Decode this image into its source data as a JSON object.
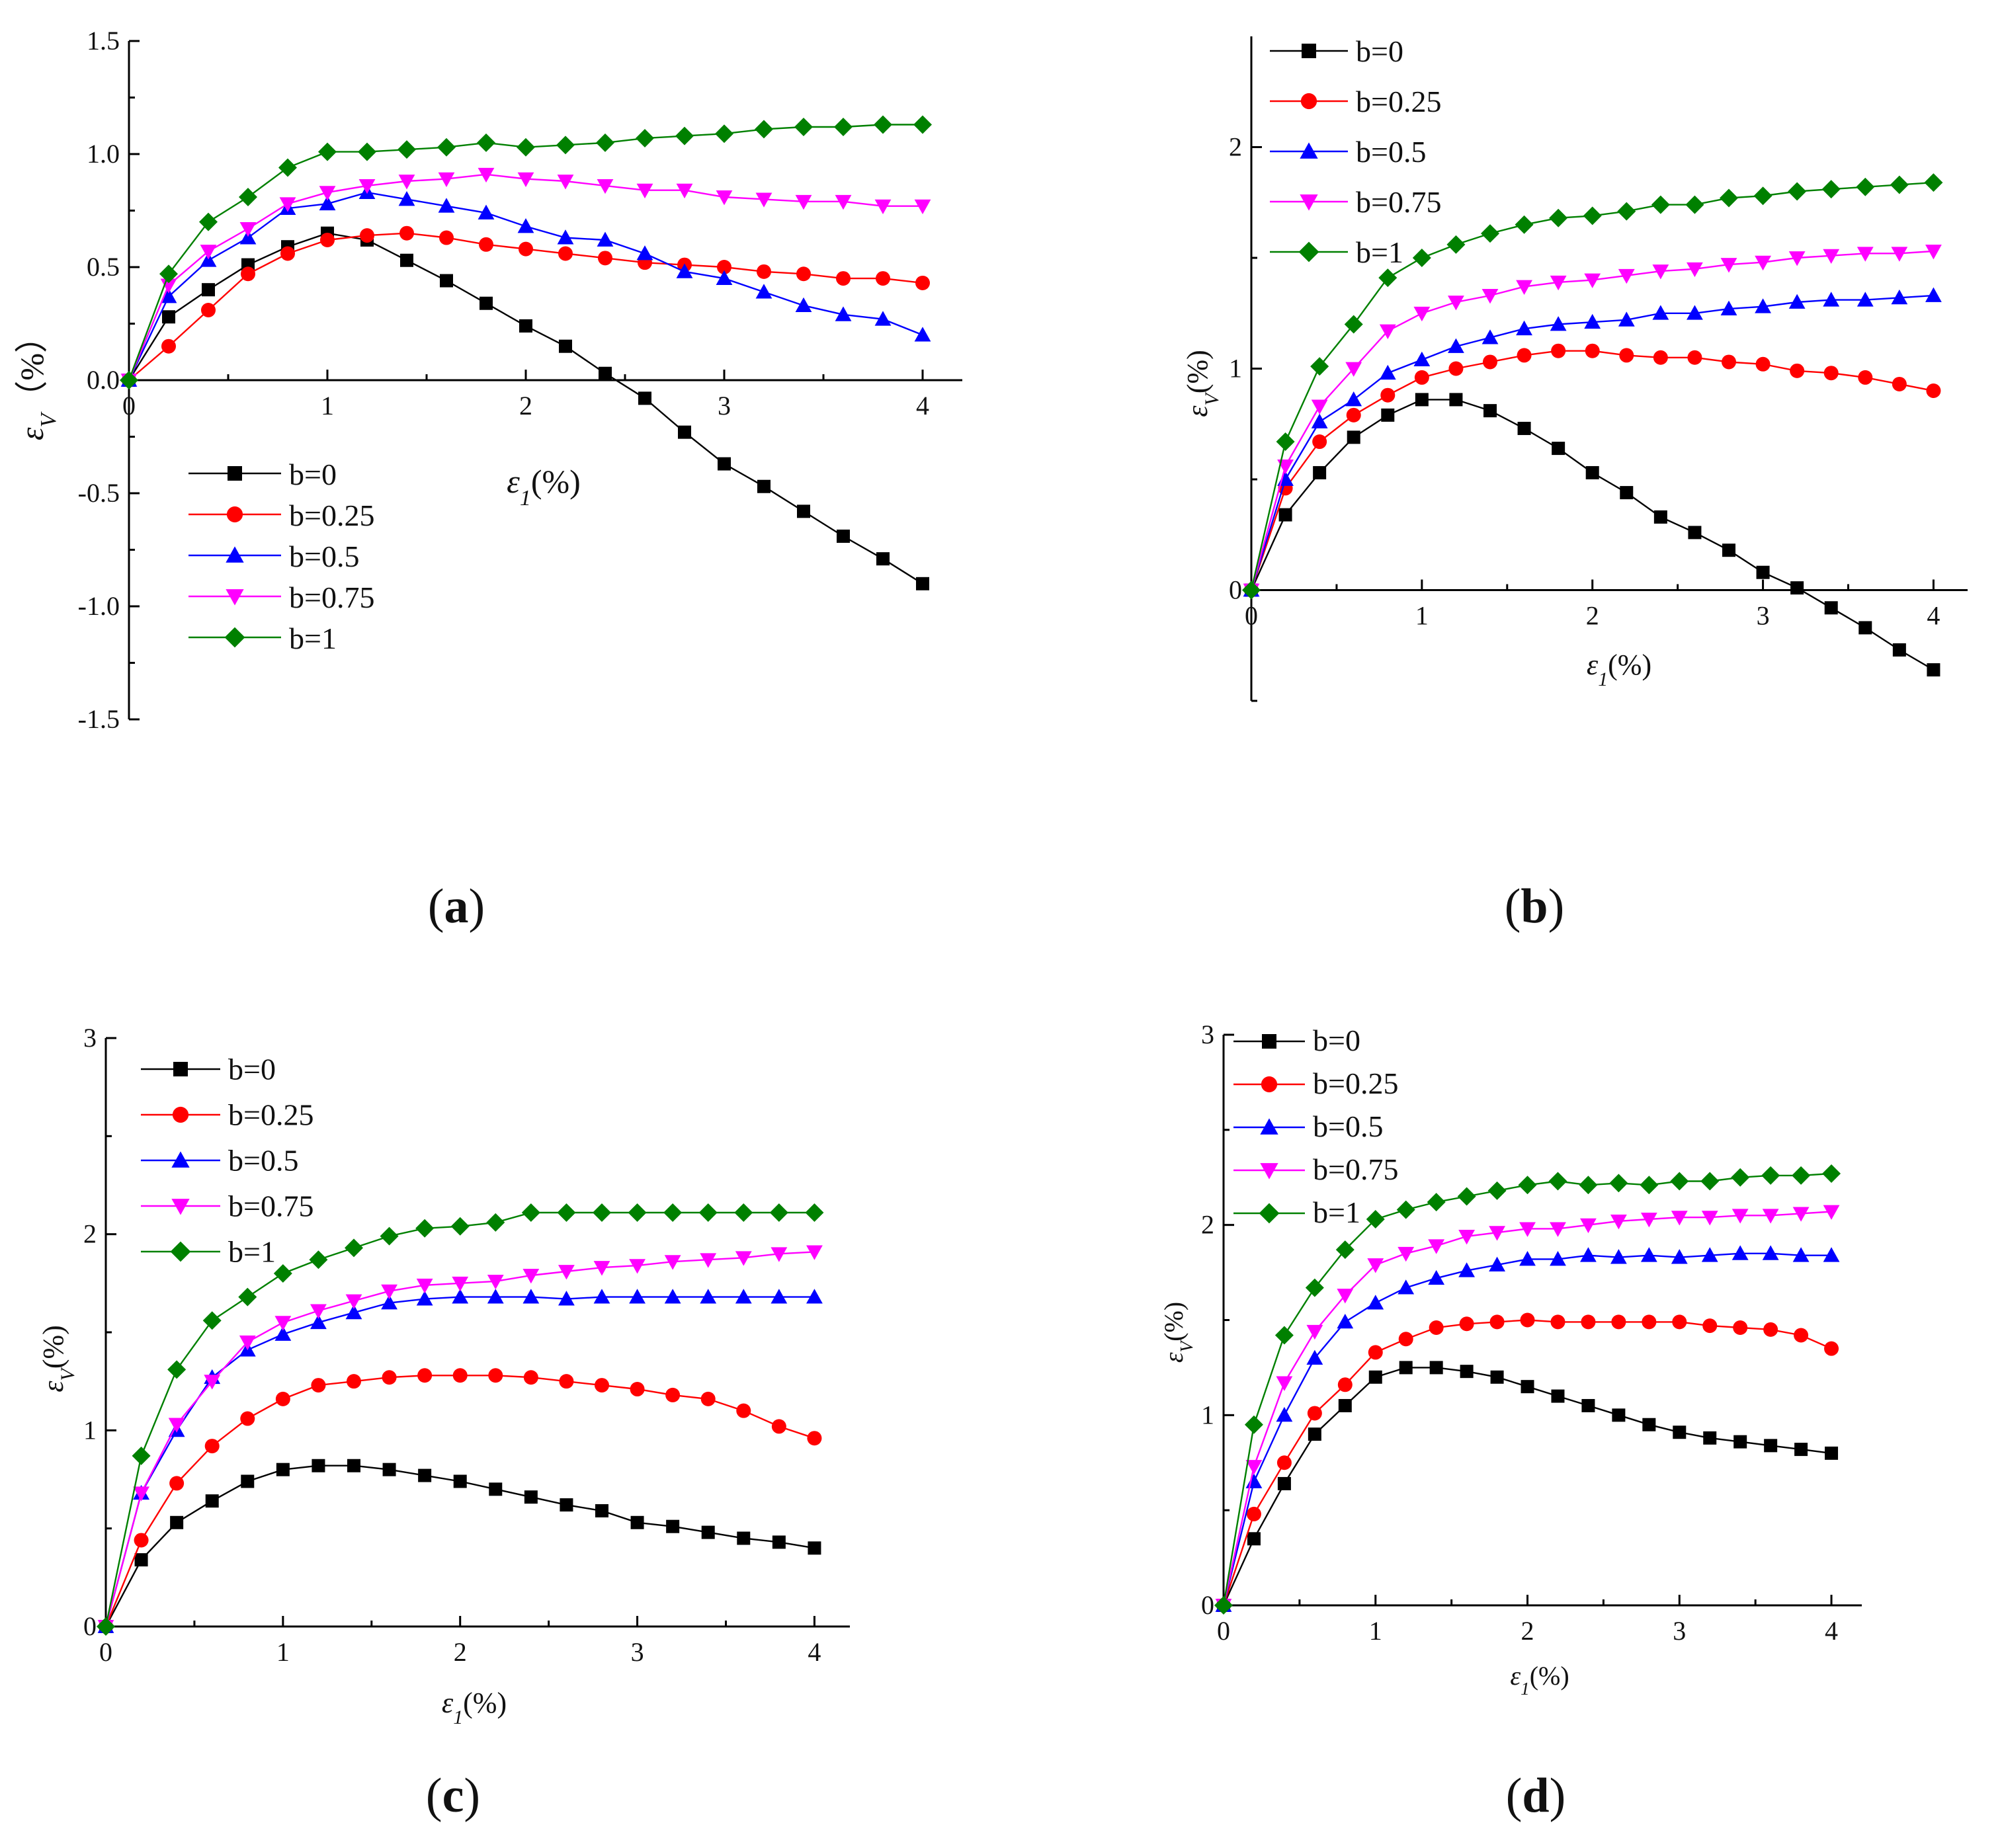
{
  "figure": {
    "panels": [
      "a",
      "b",
      "c",
      "d"
    ]
  },
  "styles": {
    "series": [
      {
        "name": "b=0",
        "color": "#000000",
        "marker": "square"
      },
      {
        "name": "b=0.25",
        "color": "#ff0000",
        "marker": "circle"
      },
      {
        "name": "b=0.5",
        "color": "#0000ff",
        "marker": "triangle-up"
      },
      {
        "name": "b=0.75",
        "color": "#ff00ff",
        "marker": "triangle-down"
      },
      {
        "name": "b=1",
        "color": "#008000",
        "marker": "diamond"
      }
    ]
  },
  "chart_data": [
    {
      "id": "a",
      "type": "line",
      "panel_label_letter": "a",
      "xlabel": "ε1(%)",
      "ylabel": "εV（%）",
      "xlim": [
        0,
        4.2
      ],
      "ylim": [
        -1.5,
        1.5
      ],
      "xticks": [
        "0",
        "1",
        "2",
        "3",
        "4"
      ],
      "yticks": [
        "1.5",
        "1.0",
        "0.5",
        "0.0",
        "-0.5",
        "-1.0",
        "-1.5"
      ],
      "legend": [
        "b=0",
        "b=0.25",
        "b=0.5",
        "b=0.75",
        "b=1"
      ],
      "legend_position": "bottom-left",
      "x": [
        0,
        0.2,
        0.4,
        0.6,
        0.8,
        1.0,
        1.2,
        1.4,
        1.6,
        1.8,
        2.0,
        2.2,
        2.4,
        2.6,
        2.8,
        3.0,
        3.2,
        3.4,
        3.6,
        3.8,
        4.0
      ],
      "series": [
        {
          "name": "b=0",
          "values": [
            0,
            0.28,
            0.4,
            0.51,
            0.59,
            0.65,
            0.62,
            0.53,
            0.44,
            0.34,
            0.24,
            0.15,
            0.03,
            -0.08,
            -0.23,
            -0.37,
            -0.47,
            -0.58,
            -0.69,
            -0.79,
            -0.9
          ]
        },
        {
          "name": "b=0.25",
          "values": [
            0,
            0.15,
            0.31,
            0.47,
            0.56,
            0.62,
            0.64,
            0.65,
            0.63,
            0.6,
            0.58,
            0.56,
            0.54,
            0.52,
            0.51,
            0.5,
            0.48,
            0.47,
            0.45,
            0.45,
            0.43
          ]
        },
        {
          "name": "b=0.5",
          "values": [
            0,
            0.37,
            0.53,
            0.63,
            0.76,
            0.78,
            0.83,
            0.8,
            0.77,
            0.74,
            0.68,
            0.63,
            0.62,
            0.56,
            0.48,
            0.45,
            0.39,
            0.33,
            0.29,
            0.27,
            0.2
          ]
        },
        {
          "name": "b=0.75",
          "values": [
            0,
            0.42,
            0.57,
            0.67,
            0.78,
            0.83,
            0.86,
            0.88,
            0.89,
            0.91,
            0.89,
            0.88,
            0.86,
            0.84,
            0.84,
            0.81,
            0.8,
            0.79,
            0.79,
            0.77,
            0.77
          ]
        },
        {
          "name": "b=1",
          "values": [
            0,
            0.47,
            0.7,
            0.81,
            0.94,
            1.01,
            1.01,
            1.02,
            1.03,
            1.05,
            1.03,
            1.04,
            1.05,
            1.07,
            1.08,
            1.09,
            1.11,
            1.12,
            1.12,
            1.13,
            1.13
          ]
        }
      ]
    },
    {
      "id": "b",
      "type": "line",
      "panel_label_letter": "b",
      "xlabel": "ε1(%)",
      "ylabel": "εV(%)",
      "xlim": [
        0,
        4.2
      ],
      "ylim": [
        -0.5,
        2.5
      ],
      "xticks": [
        "0",
        "1",
        "2",
        "3",
        "4"
      ],
      "yticks": [
        "2",
        "1",
        "0"
      ],
      "legend": [
        "b=0",
        "b=0.25",
        "b=0.5",
        "b=0.75",
        "b=1"
      ],
      "legend_position": "top-left",
      "x": [
        0,
        0.2,
        0.4,
        0.6,
        0.8,
        1.0,
        1.2,
        1.4,
        1.6,
        1.8,
        2.0,
        2.2,
        2.4,
        2.6,
        2.8,
        3.0,
        3.2,
        3.4,
        3.6,
        3.8,
        4.0
      ],
      "series": [
        {
          "name": "b=0",
          "values": [
            0,
            0.34,
            0.53,
            0.69,
            0.79,
            0.86,
            0.86,
            0.81,
            0.73,
            0.64,
            0.53,
            0.44,
            0.33,
            0.26,
            0.18,
            0.08,
            0.01,
            -0.08,
            -0.17,
            -0.27,
            -0.36
          ]
        },
        {
          "name": "b=0.25",
          "values": [
            0,
            0.46,
            0.67,
            0.79,
            0.88,
            0.96,
            1.0,
            1.03,
            1.06,
            1.08,
            1.08,
            1.06,
            1.05,
            1.05,
            1.03,
            1.02,
            0.99,
            0.98,
            0.96,
            0.93,
            0.9
          ]
        },
        {
          "name": "b=0.5",
          "values": [
            0,
            0.5,
            0.76,
            0.86,
            0.98,
            1.04,
            1.1,
            1.14,
            1.18,
            1.2,
            1.21,
            1.22,
            1.25,
            1.25,
            1.27,
            1.28,
            1.3,
            1.31,
            1.31,
            1.32,
            1.33
          ]
        },
        {
          "name": "b=0.75",
          "values": [
            0,
            0.56,
            0.83,
            1.0,
            1.17,
            1.25,
            1.3,
            1.33,
            1.37,
            1.39,
            1.4,
            1.42,
            1.44,
            1.45,
            1.47,
            1.48,
            1.5,
            1.51,
            1.52,
            1.52,
            1.53
          ]
        },
        {
          "name": "b=1",
          "values": [
            0,
            0.67,
            1.01,
            1.2,
            1.41,
            1.5,
            1.56,
            1.61,
            1.65,
            1.68,
            1.69,
            1.71,
            1.74,
            1.74,
            1.77,
            1.78,
            1.8,
            1.81,
            1.82,
            1.83,
            1.84
          ]
        }
      ]
    },
    {
      "id": "c",
      "type": "line",
      "panel_label_letter": "c",
      "xlabel": "ε1(%)",
      "ylabel": "εV(%)",
      "xlim": [
        0,
        4.2
      ],
      "ylim": [
        0,
        3
      ],
      "xticks": [
        "0",
        "1",
        "2",
        "3",
        "4"
      ],
      "yticks": [
        "3",
        "2",
        "1",
        "0"
      ],
      "legend": [
        "b=0",
        "b=0.25",
        "b=0.5",
        "b=0.75",
        "b=1"
      ],
      "legend_position": "top-left",
      "x": [
        0,
        0.2,
        0.4,
        0.6,
        0.8,
        1.0,
        1.2,
        1.4,
        1.6,
        1.8,
        2.0,
        2.2,
        2.4,
        2.6,
        2.8,
        3.0,
        3.2,
        3.4,
        3.6,
        3.8,
        4.0
      ],
      "series": [
        {
          "name": "b=0",
          "values": [
            0,
            0.34,
            0.53,
            0.64,
            0.74,
            0.8,
            0.82,
            0.82,
            0.8,
            0.77,
            0.74,
            0.7,
            0.66,
            0.62,
            0.59,
            0.53,
            0.51,
            0.48,
            0.45,
            0.43,
            0.4
          ]
        },
        {
          "name": "b=0.25",
          "values": [
            0,
            0.44,
            0.73,
            0.92,
            1.06,
            1.16,
            1.23,
            1.25,
            1.27,
            1.28,
            1.28,
            1.28,
            1.27,
            1.25,
            1.23,
            1.21,
            1.18,
            1.16,
            1.1,
            1.02,
            0.96
          ]
        },
        {
          "name": "b=0.5",
          "values": [
            0,
            0.68,
            1.0,
            1.27,
            1.41,
            1.49,
            1.55,
            1.6,
            1.65,
            1.67,
            1.68,
            1.68,
            1.68,
            1.67,
            1.68,
            1.68,
            1.68,
            1.68,
            1.68,
            1.68,
            1.68
          ]
        },
        {
          "name": "b=0.75",
          "values": [
            0,
            0.68,
            1.03,
            1.25,
            1.45,
            1.55,
            1.61,
            1.66,
            1.71,
            1.74,
            1.75,
            1.76,
            1.79,
            1.81,
            1.83,
            1.84,
            1.86,
            1.87,
            1.88,
            1.9,
            1.91
          ]
        },
        {
          "name": "b=1",
          "values": [
            0,
            0.87,
            1.31,
            1.56,
            1.68,
            1.8,
            1.87,
            1.93,
            1.99,
            2.03,
            2.04,
            2.06,
            2.11,
            2.11,
            2.11,
            2.11,
            2.11,
            2.11,
            2.11,
            2.11,
            2.11
          ]
        }
      ]
    },
    {
      "id": "d",
      "type": "line",
      "panel_label_letter": "d",
      "xlabel": "ε1(%)",
      "ylabel": "εV(%)",
      "xlim": [
        0,
        4.2
      ],
      "ylim": [
        0,
        3
      ],
      "xticks": [
        "0",
        "1",
        "2",
        "3",
        "4"
      ],
      "yticks": [
        "3",
        "2",
        "1",
        "0"
      ],
      "legend": [
        "b=0",
        "b=0.25",
        "b=0.5",
        "b=0.75",
        "b=1"
      ],
      "legend_position": "top-left",
      "x": [
        0,
        0.2,
        0.4,
        0.6,
        0.8,
        1.0,
        1.2,
        1.4,
        1.6,
        1.8,
        2.0,
        2.2,
        2.4,
        2.6,
        2.8,
        3.0,
        3.2,
        3.4,
        3.6,
        3.8,
        4.0
      ],
      "series": [
        {
          "name": "b=0",
          "values": [
            0,
            0.35,
            0.64,
            0.9,
            1.05,
            1.2,
            1.25,
            1.25,
            1.23,
            1.2,
            1.15,
            1.1,
            1.05,
            1.0,
            0.95,
            0.91,
            0.88,
            0.86,
            0.84,
            0.82,
            0.8
          ]
        },
        {
          "name": "b=0.25",
          "values": [
            0,
            0.48,
            0.75,
            1.01,
            1.16,
            1.33,
            1.4,
            1.46,
            1.48,
            1.49,
            1.5,
            1.49,
            1.49,
            1.49,
            1.49,
            1.49,
            1.47,
            1.46,
            1.45,
            1.42,
            1.35
          ]
        },
        {
          "name": "b=0.5",
          "values": [
            0,
            0.65,
            1.0,
            1.3,
            1.49,
            1.59,
            1.67,
            1.72,
            1.76,
            1.79,
            1.82,
            1.82,
            1.84,
            1.83,
            1.84,
            1.83,
            1.84,
            1.85,
            1.85,
            1.84,
            1.84
          ]
        },
        {
          "name": "b=0.75",
          "values": [
            0,
            0.73,
            1.17,
            1.44,
            1.63,
            1.79,
            1.85,
            1.89,
            1.94,
            1.96,
            1.98,
            1.98,
            2.0,
            2.02,
            2.03,
            2.04,
            2.04,
            2.05,
            2.05,
            2.06,
            2.07
          ]
        },
        {
          "name": "b=1",
          "values": [
            0,
            0.95,
            1.42,
            1.67,
            1.87,
            2.03,
            2.08,
            2.12,
            2.15,
            2.18,
            2.21,
            2.23,
            2.21,
            2.22,
            2.21,
            2.23,
            2.23,
            2.25,
            2.26,
            2.26,
            2.27
          ]
        }
      ]
    }
  ]
}
